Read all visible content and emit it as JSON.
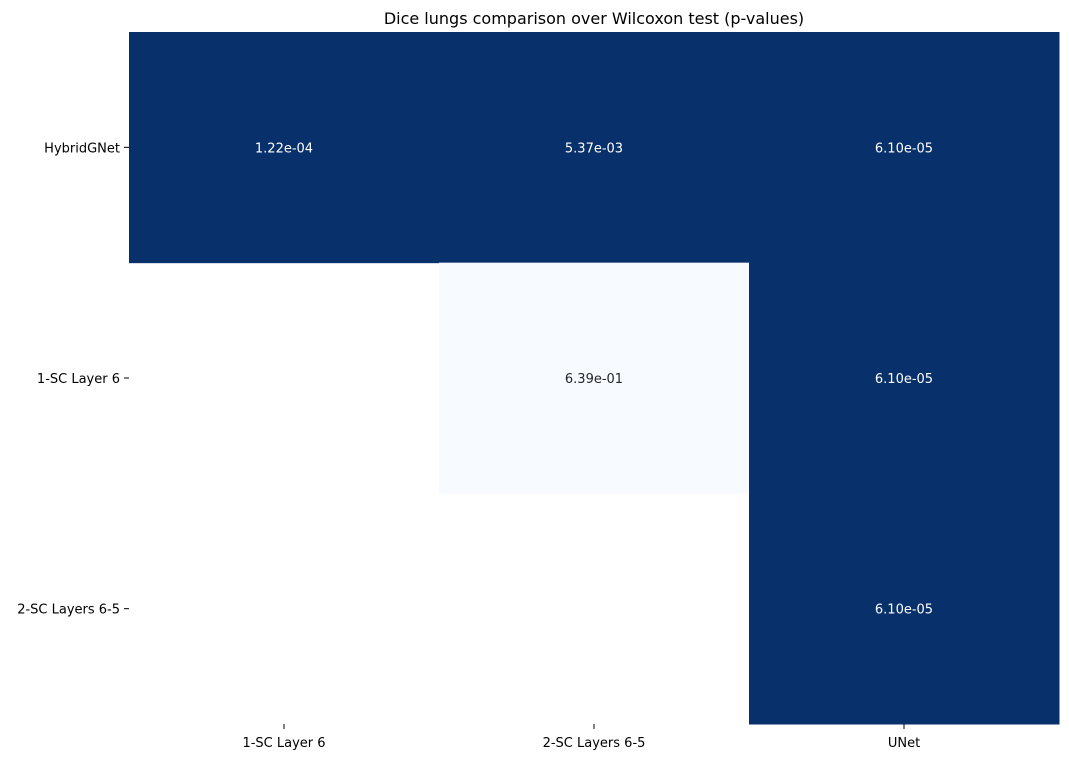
{
  "chart_data": {
    "type": "heatmap",
    "title": "Dice lungs comparison over Wilcoxon test (p-values)",
    "xlabel": "",
    "ylabel": "",
    "x_categories": [
      "1-SC Layer 6",
      "2-SC Layers 6-5",
      "UNet"
    ],
    "y_categories": [
      "HybridGNet",
      "1-SC Layer 6",
      "2-SC Layers 6-5"
    ],
    "values": [
      [
        0.000122,
        0.00537,
        6.1e-05
      ],
      [
        null,
        0.639,
        6.1e-05
      ],
      [
        null,
        null,
        6.1e-05
      ]
    ],
    "labels": [
      [
        "1.22e-04",
        "5.37e-03",
        "6.10e-05"
      ],
      [
        "",
        "6.39e-01",
        "6.10e-05"
      ],
      [
        "",
        "",
        "6.10e-05"
      ]
    ],
    "colormap": "Blues_reversed",
    "colorbar": false,
    "grid": false,
    "colors": {
      "cell_darkest": "#08306b",
      "cell_dark": "#093f80",
      "cell_lightest": "#f7fbff",
      "label_on_dark": "#ffffff",
      "label_on_light": "#262626",
      "text": "#000000"
    }
  }
}
